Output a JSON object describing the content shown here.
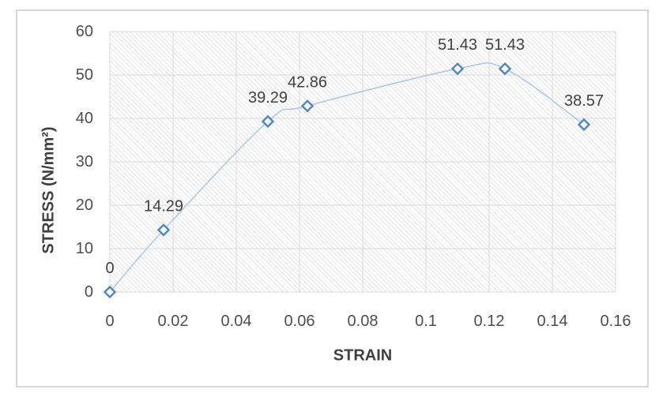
{
  "chart_data": {
    "type": "scatter",
    "line_style": "smooth",
    "x": [
      0,
      0.017,
      0.05,
      0.0625,
      0.11,
      0.125,
      0.15
    ],
    "y": [
      0,
      14.29,
      39.29,
      42.86,
      51.43,
      51.43,
      38.57
    ],
    "point_labels": [
      "0",
      "14.29",
      "39.29",
      "42.86",
      "51.43",
      "51.43",
      "38.57"
    ],
    "title": "",
    "xlabel": "STRAIN",
    "ylabel": "STRESS (N/mm²)",
    "xlim": [
      0,
      0.16
    ],
    "ylim": [
      0,
      60
    ],
    "x_ticks": [
      "0",
      "0.02",
      "0.04",
      "0.06",
      "0.08",
      "0.1",
      "0.12",
      "0.14",
      "0.16"
    ],
    "y_ticks": [
      "0",
      "10",
      "20",
      "30",
      "40",
      "50",
      "60"
    ],
    "grid": true,
    "legend": "none",
    "plot_fill_pattern": "light-downward-diagonal-hatch",
    "colors": {
      "marker_stroke": "#4e86c5",
      "marker_fill": "#ffffff",
      "line": "#a9c7e6",
      "gridline": "#d9d9d9",
      "hatch_line": "#e4e4e4",
      "tick_text": "#4d4d4d",
      "data_label_text": "#3f3f3f",
      "axis_title_text": "#3f3f3f",
      "frame_border": "#d6d6d6",
      "background": "#ffffff"
    }
  }
}
